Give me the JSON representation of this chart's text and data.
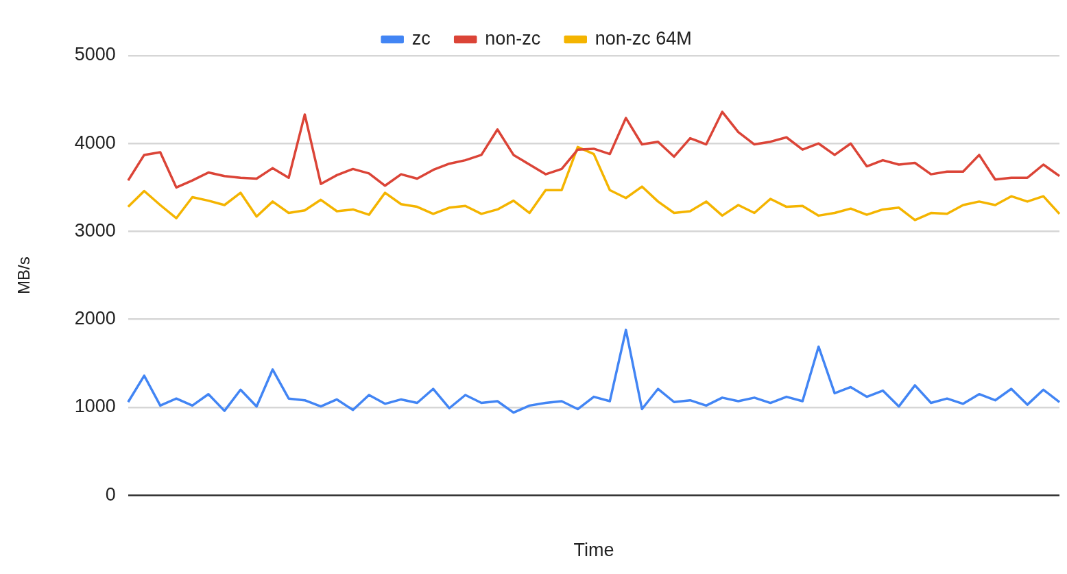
{
  "chart_data": {
    "type": "line",
    "xlabel": "Time",
    "ylabel": "MB/s",
    "categories": [
      null,
      null,
      null,
      null,
      null,
      null,
      null,
      null,
      null,
      null,
      null,
      null,
      null,
      null,
      null,
      null,
      null,
      null,
      null,
      null,
      null,
      null,
      null,
      null,
      null,
      null,
      null,
      null,
      null,
      null,
      null,
      null,
      null,
      null,
      null,
      null,
      null,
      null,
      null,
      null,
      null,
      null,
      null,
      null,
      null,
      null,
      null,
      null,
      null,
      null,
      null,
      null,
      null,
      null,
      null,
      null,
      null,
      null,
      null
    ],
    "series": [
      {
        "name": "zc",
        "color": "#4285f4",
        "values": [
          1060,
          1360,
          1020,
          1100,
          1020,
          1150,
          960,
          1200,
          1010,
          1430,
          1100,
          1080,
          1010,
          1090,
          970,
          1140,
          1040,
          1090,
          1050,
          1210,
          990,
          1140,
          1050,
          1070,
          940,
          1020,
          1050,
          1070,
          980,
          1120,
          1070,
          1880,
          980,
          1210,
          1060,
          1080,
          1020,
          1110,
          1070,
          1110,
          1050,
          1120,
          1070,
          1690,
          1160,
          1230,
          1120,
          1190,
          1010,
          1250,
          1050,
          1100,
          1040,
          1150,
          1080,
          1210,
          1030,
          1200,
          1060
        ]
      },
      {
        "name": "non-zc",
        "color": "#db4437",
        "values": [
          3580,
          3870,
          3900,
          3500,
          3580,
          3670,
          3630,
          3610,
          3600,
          3720,
          3610,
          4330,
          3540,
          3640,
          3710,
          3660,
          3520,
          3650,
          3600,
          3700,
          3770,
          3810,
          3870,
          4160,
          3870,
          3760,
          3650,
          3710,
          3930,
          3940,
          3880,
          4290,
          3990,
          4020,
          3850,
          4060,
          3990,
          4360,
          4130,
          3990,
          4020,
          4070,
          3930,
          4000,
          3870,
          4000,
          3740,
          3810,
          3760,
          3780,
          3650,
          3680,
          3680,
          3870,
          3590,
          3610,
          3610,
          3760,
          3630
        ]
      },
      {
        "name": "non-zc 64M",
        "color": "#f4b400",
        "values": [
          3280,
          3460,
          3300,
          3150,
          3390,
          3350,
          3300,
          3440,
          3170,
          3340,
          3210,
          3240,
          3360,
          3230,
          3250,
          3190,
          3440,
          3310,
          3280,
          3200,
          3270,
          3290,
          3200,
          3250,
          3350,
          3210,
          3470,
          3470,
          3960,
          3880,
          3470,
          3380,
          3510,
          3340,
          3210,
          3230,
          3340,
          3180,
          3300,
          3210,
          3370,
          3280,
          3290,
          3180,
          3210,
          3260,
          3190,
          3250,
          3270,
          3130,
          3210,
          3200,
          3300,
          3340,
          3300,
          3400,
          3340,
          3400,
          3200
        ]
      }
    ],
    "ylim": [
      0,
      5000
    ],
    "yticks": [
      0,
      1000,
      2000,
      3000,
      4000,
      5000
    ],
    "grid": "y",
    "legend": "top",
    "marker": "none",
    "line_style": "solid"
  }
}
